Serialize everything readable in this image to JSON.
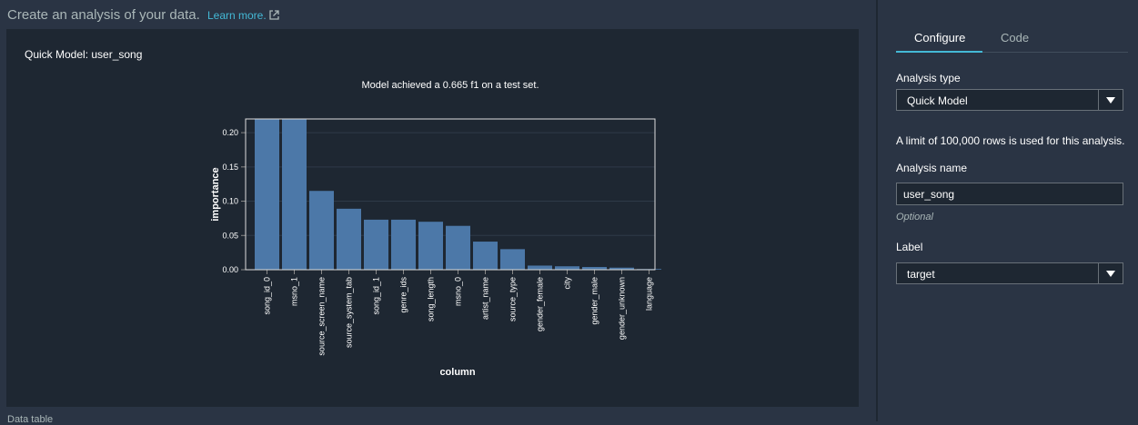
{
  "header": {
    "title": "Create an analysis of your data.",
    "learn_more": "Learn more."
  },
  "panel": {
    "title": "Quick Model: user_song"
  },
  "bottom_label": "Data table",
  "chart_data": {
    "type": "bar",
    "title": "Model achieved a 0.665 f1 on a test set.",
    "xlabel": "column",
    "ylabel": "importance",
    "ylim": [
      0,
      0.22
    ],
    "yticks": [
      "0.00",
      "0.05",
      "0.10",
      "0.15",
      "0.20"
    ],
    "categories": [
      "song_id_0",
      "msno_1",
      "source_screen_name",
      "source_system_tab",
      "song_id_1",
      "genre_ids",
      "song_length",
      "msno_0",
      "artist_name",
      "source_type",
      "gender_female",
      "city",
      "gender_male",
      "gender_unknown",
      "language"
    ],
    "values": [
      0.22,
      0.22,
      0.115,
      0.089,
      0.073,
      0.073,
      0.07,
      0.064,
      0.041,
      0.03,
      0.006,
      0.005,
      0.004,
      0.003,
      0.001
    ],
    "bar_color": "#4c78a8",
    "grid": true
  },
  "side": {
    "tabs": [
      {
        "label": "Configure",
        "active": true
      },
      {
        "label": "Code",
        "active": false
      }
    ],
    "analysis_type_label": "Analysis type",
    "analysis_type_value": "Quick Model",
    "limit_note": "A limit of 100,000 rows is used for this analysis.",
    "analysis_name_label": "Analysis name",
    "analysis_name_value": "user_song",
    "optional_hint": "Optional",
    "label_label": "Label",
    "label_value": "target"
  },
  "colors": {
    "accent": "#44b9d6",
    "background": "#2a3444",
    "panel": "#1e2732"
  }
}
